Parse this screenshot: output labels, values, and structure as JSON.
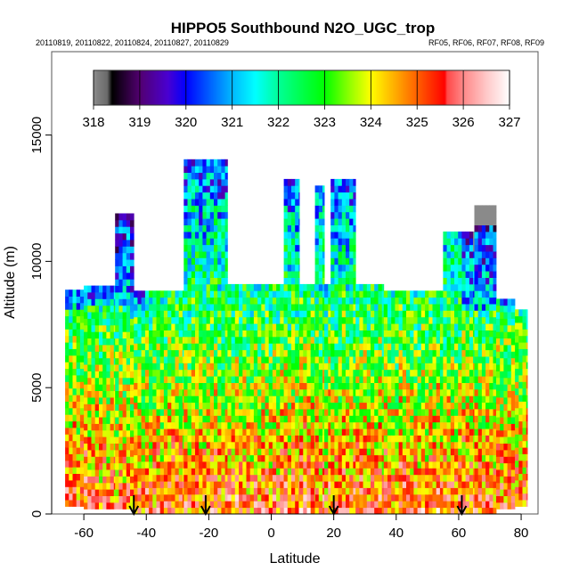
{
  "chart_data": {
    "type": "heatmap",
    "title": "HIPPO5 Southbound N2O_UGC_trop",
    "subtitle_left": "20110819, 20110822, 20110824, 20110827, 20110829",
    "subtitle_right": "RF05, RF06, RF07, RF08, RF09",
    "xlabel": "Latitude",
    "ylabel": "Altitude (m)",
    "xlim": [
      -70.3,
      85.4
    ],
    "ylim": [
      0,
      18300
    ],
    "xticks": [
      "-60",
      "-40",
      "-20",
      "0",
      "20",
      "40",
      "60",
      "80"
    ],
    "xtick_values": [
      -60,
      -40,
      -20,
      0,
      20,
      40,
      60,
      80
    ],
    "yticks": [
      "0",
      "5000",
      "10000",
      "15000"
    ],
    "ytick_values": [
      0,
      5000,
      10000,
      15000
    ],
    "colorbar": {
      "ticks": [
        "318",
        "319",
        "320",
        "321",
        "322",
        "323",
        "324",
        "325",
        "326",
        "327"
      ],
      "range": [
        318,
        327
      ],
      "stops": [
        [
          318,
          "#8a8a8a"
        ],
        [
          318.3,
          "#6a6a6a"
        ],
        [
          318.4,
          "#000000"
        ],
        [
          319,
          "#520070"
        ],
        [
          319.6,
          "#4a00d0"
        ],
        [
          320,
          "#0000ff"
        ],
        [
          320.6,
          "#0070ff"
        ],
        [
          321,
          "#00b8ff"
        ],
        [
          321.5,
          "#00ffff"
        ],
        [
          322,
          "#00ff98"
        ],
        [
          323,
          "#00ff00"
        ],
        [
          323.6,
          "#a0ff00"
        ],
        [
          324,
          "#ffff00"
        ],
        [
          324.5,
          "#ffb000"
        ],
        [
          325,
          "#ff6000"
        ],
        [
          325.6,
          "#ff0000"
        ],
        [
          325.65,
          "#ff4848"
        ],
        [
          326,
          "#ff8888"
        ],
        [
          326.5,
          "#ffc8c8"
        ],
        [
          327,
          "#ffffff"
        ]
      ]
    },
    "value_trend": {
      "surface_value": 325.3,
      "per_km_change": -0.35,
      "noise_amplitude": 1.4
    },
    "profile_envelope": [
      {
        "lat": [
          -66,
          -60
        ],
        "bottom": 300,
        "top": 8700
      },
      {
        "lat": [
          -60,
          -50
        ],
        "bottom": 200,
        "top": 9000
      },
      {
        "lat": [
          -50,
          -44
        ],
        "bottom": 200,
        "top": 11800
      },
      {
        "lat": [
          -44,
          -28
        ],
        "bottom": 0,
        "top": 8600
      },
      {
        "lat": [
          -28,
          -14
        ],
        "bottom": 0,
        "top": 13800
      },
      {
        "lat": [
          -14,
          4
        ],
        "bottom": 0,
        "top": 9100
      },
      {
        "lat": [
          4,
          9
        ],
        "bottom": 0,
        "top": 13100
      },
      {
        "lat": [
          9,
          14
        ],
        "bottom": 0,
        "top": 9100
      },
      {
        "lat": [
          14,
          17
        ],
        "bottom": 0,
        "top": 12800
      },
      {
        "lat": [
          17,
          19
        ],
        "bottom": 0,
        "top": 9100
      },
      {
        "lat": [
          19,
          27
        ],
        "bottom": 0,
        "top": 13100
      },
      {
        "lat": [
          27,
          36
        ],
        "bottom": 0,
        "top": 9000
      },
      {
        "lat": [
          36,
          55
        ],
        "bottom": 0,
        "top": 8600
      },
      {
        "lat": [
          55,
          65
        ],
        "bottom": 0,
        "top": 11000
      },
      {
        "lat": [
          65,
          72
        ],
        "bottom": 0,
        "top": 12100
      },
      {
        "lat": [
          72,
          78
        ],
        "bottom": 200,
        "top": 8400
      },
      {
        "lat": [
          78,
          82
        ],
        "bottom": 300,
        "top": 8000
      }
    ],
    "arrow_markers_lat": [
      -44,
      -21,
      20,
      61
    ]
  },
  "colors": {
    "axis": "#000000",
    "box": "#555555",
    "arrow": "#000000"
  }
}
